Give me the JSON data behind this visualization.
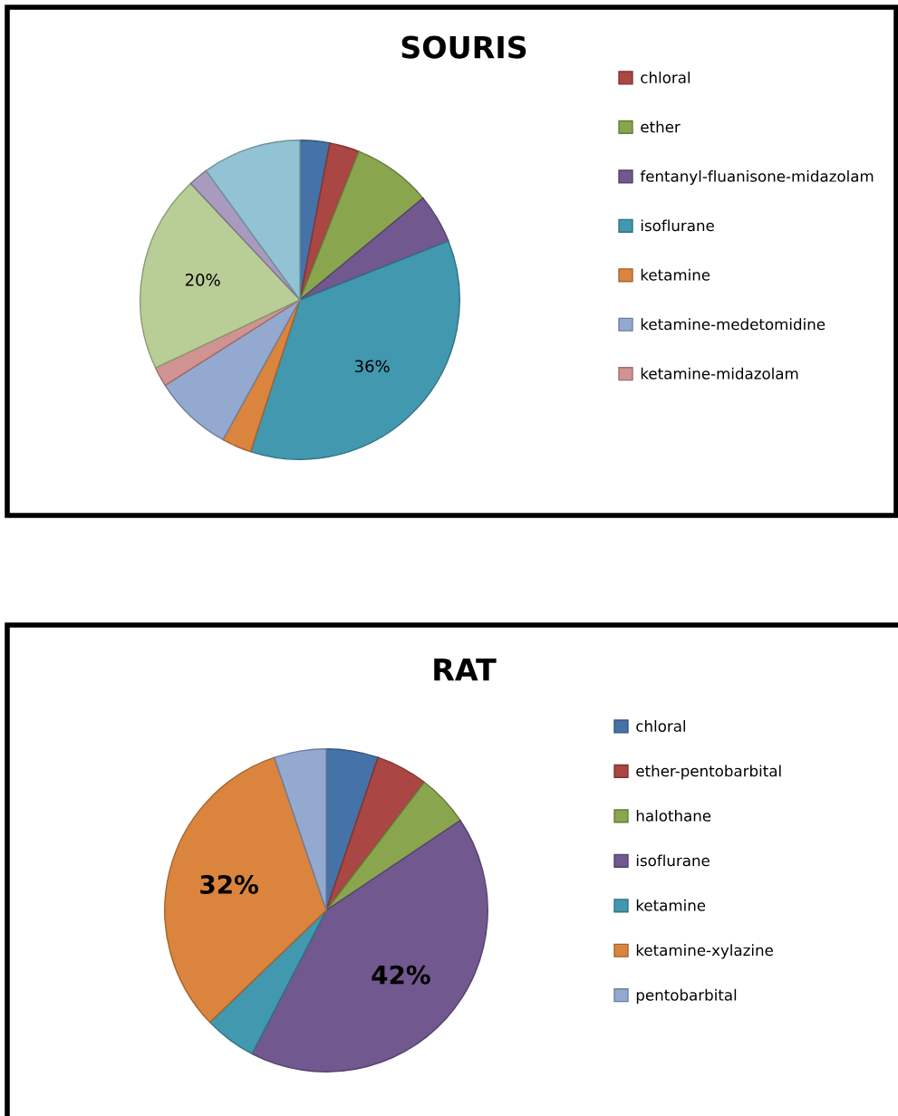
{
  "chart_data": [
    {
      "type": "pie",
      "title": "SOURIS",
      "categories": [
        null,
        "chloral",
        "ether",
        "fentanyl-fluanisone-midazolam",
        "isoflurane",
        "ketamine",
        "ketamine-medetomidine",
        "ketamine-midazolam",
        null,
        null,
        null
      ],
      "values": [
        3,
        3,
        8,
        5,
        36,
        3,
        8,
        2,
        20,
        2,
        10
      ],
      "colors": [
        "#4572a7",
        "#aa4643",
        "#89a54e",
        "#71588f",
        "#4198af",
        "#db843d",
        "#93a9cf",
        "#d19392",
        "#b9cd96",
        "#a99bbd",
        "#92c3d4"
      ],
      "value_labels": [
        null,
        null,
        null,
        null,
        "36%",
        null,
        null,
        null,
        "20%",
        null,
        null
      ],
      "legend": "right"
    },
    {
      "type": "pie",
      "title": "RAT",
      "categories": [
        "chloral",
        "ether-pentobarbital",
        "halothane",
        "isoflurane",
        "ketamine",
        "ketamine-xylazine",
        "pentobarbital"
      ],
      "values": [
        5.2,
        5.2,
        5.2,
        42,
        5.2,
        32,
        5.2
      ],
      "colors": [
        "#4572a7",
        "#aa4643",
        "#89a54e",
        "#71588f",
        "#4198af",
        "#db843d",
        "#93a9cf"
      ],
      "value_labels": [
        null,
        null,
        null,
        "42%",
        null,
        "32%",
        null
      ],
      "legend": "right"
    }
  ]
}
